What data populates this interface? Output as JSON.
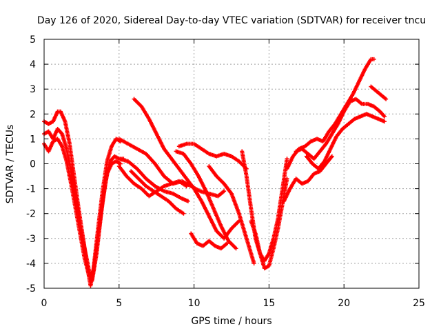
{
  "chart_data": {
    "type": "scatter",
    "title": "Day 126 of 2020, Sidereal Day-to-day VTEC variation (SDTVAR) for receiver tncu",
    "xlabel": "GPS time / hours",
    "ylabel": "SDTVAR / TECUs",
    "xlim": [
      0,
      25
    ],
    "ylim": [
      -5,
      5
    ],
    "xticks": [
      "0",
      "5",
      "10",
      "15",
      "20",
      "25"
    ],
    "yticks": [
      "-5",
      "-4",
      "-3",
      "-2",
      "-1",
      "0",
      "1",
      "2",
      "3",
      "4",
      "5"
    ],
    "grid": true,
    "marker": "plus",
    "color": "#ff0000",
    "series": [
      {
        "x": [
          0.0,
          0.3,
          0.6,
          0.9,
          1.1,
          1.4,
          1.7,
          2.0,
          2.3,
          2.6,
          2.9,
          3.1,
          3.3,
          3.6,
          3.9,
          4.2,
          4.5,
          4.8,
          5.1
        ],
        "y": [
          1.7,
          1.6,
          1.7,
          2.1,
          2.1,
          1.7,
          0.8,
          -0.5,
          -1.8,
          -3.0,
          -4.2,
          -4.9,
          -4.2,
          -2.6,
          -1.1,
          0.1,
          0.7,
          1.0,
          0.9
        ]
      },
      {
        "x": [
          0.0,
          0.3,
          0.6,
          0.9,
          1.2,
          1.5,
          1.8,
          2.1,
          2.4,
          2.7,
          3.0,
          3.2,
          3.5,
          3.8,
          4.1,
          4.4,
          4.7,
          5.0,
          5.3
        ],
        "y": [
          1.2,
          1.3,
          1.0,
          1.4,
          1.2,
          0.6,
          -0.3,
          -1.3,
          -2.4,
          -3.4,
          -4.3,
          -4.7,
          -3.6,
          -2.0,
          -0.7,
          0.1,
          0.3,
          0.2,
          0.2
        ]
      },
      {
        "x": [
          0.0,
          0.3,
          0.6,
          0.9,
          1.2,
          1.5,
          1.8,
          2.1,
          2.4,
          2.7,
          3.0,
          3.3,
          3.6,
          3.9,
          4.2,
          4.5,
          4.8,
          5.1
        ],
        "y": [
          0.8,
          0.5,
          0.9,
          1.0,
          0.7,
          0.1,
          -0.8,
          -1.8,
          -2.8,
          -3.8,
          -4.5,
          -4.3,
          -3.0,
          -1.5,
          -0.4,
          0.0,
          0.1,
          0.0
        ]
      },
      {
        "x": [
          5.0,
          5.6,
          6.2,
          6.8,
          7.4,
          8.0,
          8.6,
          9.2,
          9.8,
          10.4,
          11.0,
          11.6,
          12.0
        ],
        "y": [
          1.0,
          0.8,
          0.6,
          0.4,
          0.0,
          -0.5,
          -0.8,
          -0.7,
          -0.9,
          -1.1,
          -1.2,
          -1.3,
          -1.1
        ]
      },
      {
        "x": [
          5.0,
          5.6,
          6.2,
          6.8,
          7.4,
          8.0,
          8.6,
          9.2,
          9.6
        ],
        "y": [
          0.2,
          0.1,
          -0.2,
          -0.6,
          -0.9,
          -1.1,
          -1.2,
          -1.4,
          -1.5
        ]
      },
      {
        "x": [
          5.0,
          5.5,
          6.0,
          6.5,
          7.0,
          7.5,
          8.0,
          8.5,
          9.0,
          9.5
        ],
        "y": [
          -0.1,
          -0.5,
          -0.8,
          -1.0,
          -1.3,
          -1.1,
          -0.9,
          -0.8,
          -0.7,
          -0.9
        ]
      },
      {
        "x": [
          5.8,
          6.3,
          6.8,
          7.3,
          7.8,
          8.3,
          8.8,
          9.3
        ],
        "y": [
          -0.3,
          -0.6,
          -0.9,
          -1.1,
          -1.3,
          -1.5,
          -1.8,
          -2.0
        ]
      },
      {
        "x": [
          6.0,
          6.5,
          7.0,
          7.5,
          8.0,
          8.5,
          9.0,
          9.5,
          10.0,
          10.5,
          11.0,
          11.5,
          12.0,
          12.5,
          13.0
        ],
        "y": [
          2.6,
          2.3,
          1.8,
          1.2,
          0.6,
          0.2,
          -0.2,
          -0.6,
          -1.0,
          -1.5,
          -2.1,
          -2.7,
          -3.0,
          -2.6,
          -2.3
        ]
      },
      {
        "x": [
          9.0,
          9.5,
          10.0,
          10.5,
          11.0,
          11.5,
          12.0,
          12.5,
          13.0,
          13.5
        ],
        "y": [
          0.7,
          0.8,
          0.8,
          0.6,
          0.4,
          0.3,
          0.4,
          0.3,
          0.1,
          -0.2
        ]
      },
      {
        "x": [
          8.8,
          9.3,
          9.8,
          10.3,
          10.8,
          11.3,
          11.8,
          12.3,
          12.8
        ],
        "y": [
          0.5,
          0.4,
          0.0,
          -0.5,
          -1.1,
          -1.8,
          -2.5,
          -3.1,
          -3.4
        ]
      },
      {
        "x": [
          9.8,
          10.2,
          10.6,
          11.0,
          11.4,
          11.8,
          12.2
        ],
        "y": [
          -2.8,
          -3.2,
          -3.3,
          -3.1,
          -3.3,
          -3.4,
          -3.2
        ]
      },
      {
        "x": [
          11.0,
          11.5,
          12.0,
          12.5,
          13.0,
          13.5,
          14.0
        ],
        "y": [
          -0.1,
          -0.5,
          -0.8,
          -1.2,
          -2.0,
          -3.0,
          -4.0
        ]
      },
      {
        "x": [
          13.2,
          13.5,
          13.8,
          14.1,
          14.4,
          14.7,
          15.0,
          15.3,
          15.6,
          15.9,
          16.2
        ],
        "y": [
          0.5,
          -0.5,
          -1.8,
          -3.0,
          -3.6,
          -3.9,
          -3.6,
          -3.0,
          -2.2,
          -1.0,
          0.2
        ]
      },
      {
        "x": [
          13.8,
          14.1,
          14.4,
          14.7,
          15.0,
          15.3,
          15.6,
          15.9,
          16.2
        ],
        "y": [
          -2.3,
          -2.8,
          -3.6,
          -4.2,
          -4.1,
          -3.4,
          -2.6,
          -1.6,
          -0.6
        ]
      },
      {
        "x": [
          16.2,
          16.6,
          17.0,
          17.4,
          17.8,
          18.2,
          18.6,
          19.0,
          19.4,
          19.8,
          20.2,
          20.6,
          21.0,
          21.4,
          21.8,
          22.0
        ],
        "y": [
          -0.2,
          0.3,
          0.6,
          0.7,
          0.9,
          1.0,
          0.9,
          1.3,
          1.6,
          2.0,
          2.4,
          2.8,
          3.3,
          3.8,
          4.2,
          4.2
        ]
      },
      {
        "x": [
          16.8,
          17.2,
          17.6,
          18.0,
          18.4,
          18.8,
          19.2,
          19.6,
          20.0,
          20.4,
          20.8,
          21.2,
          21.6,
          22.0,
          22.4,
          22.7
        ],
        "y": [
          0.5,
          0.6,
          0.4,
          0.2,
          0.5,
          0.8,
          1.2,
          1.6,
          2.1,
          2.5,
          2.6,
          2.4,
          2.4,
          2.3,
          2.1,
          1.9
        ]
      },
      {
        "x": [
          17.5,
          17.9,
          18.3,
          18.7,
          19.1,
          19.5,
          19.9,
          20.3,
          20.7,
          21.1,
          21.5,
          21.9,
          22.3,
          22.7
        ],
        "y": [
          0.3,
          0.0,
          -0.2,
          0.1,
          0.6,
          1.1,
          1.4,
          1.6,
          1.8,
          1.9,
          2.0,
          1.9,
          1.8,
          1.7
        ]
      },
      {
        "x": [
          16.0,
          16.4,
          16.8,
          17.2,
          17.6,
          18.0,
          18.4,
          18.8,
          19.2
        ],
        "y": [
          -1.5,
          -1.0,
          -0.6,
          -0.8,
          -0.7,
          -0.4,
          -0.3,
          0.0,
          0.3
        ]
      },
      {
        "x": [
          21.8,
          22.0,
          22.2,
          22.4,
          22.6,
          22.8
        ],
        "y": [
          3.1,
          3.0,
          2.9,
          2.8,
          2.7,
          2.6
        ]
      }
    ]
  }
}
